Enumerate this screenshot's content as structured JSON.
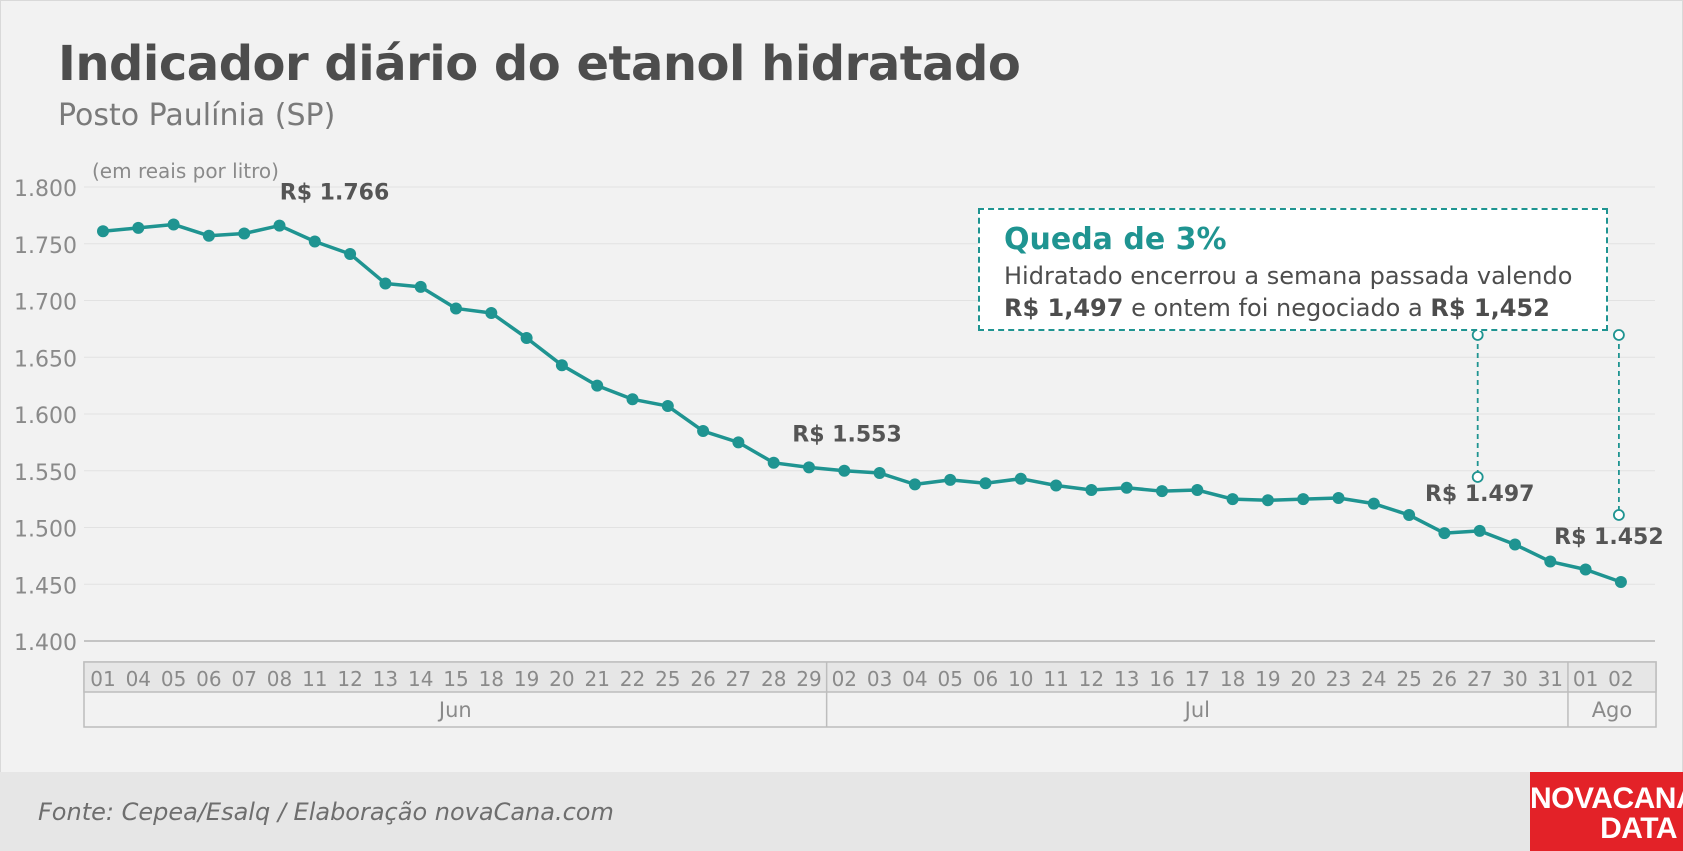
{
  "title": "Indicador diário do etanol hidratado",
  "subtitle": "Posto Paulínia (SP)",
  "source": "Fonte: Cepea/Esalq / Elaboração novaCana.com",
  "logo": {
    "line1": "NOVACANA",
    "line2": "DATA"
  },
  "callout": {
    "heading": "Queda de 3%",
    "line1": "Hidratado encerrou a semana passada valendo",
    "value1": "R$ 1,497",
    "middle": " e ontem foi negociado a ",
    "value2": "R$ 1,452"
  },
  "colors": {
    "line": "#1f9491",
    "accent": "#1f9491",
    "logo": "#e32228"
  },
  "chart_data": {
    "type": "line",
    "ylabel": "(em reais por litro)",
    "ylim": [
      1.4,
      1.8
    ],
    "yticks": [
      "1.800",
      "1.750",
      "1.700",
      "1.650",
      "1.600",
      "1.550",
      "1.500",
      "1.450",
      "1.400"
    ],
    "ytick_values": [
      1.8,
      1.75,
      1.7,
      1.65,
      1.6,
      1.55,
      1.5,
      1.45,
      1.4
    ],
    "grid": true,
    "categories": [
      "01",
      "04",
      "05",
      "06",
      "07",
      "08",
      "11",
      "12",
      "13",
      "14",
      "15",
      "18",
      "19",
      "20",
      "21",
      "22",
      "25",
      "26",
      "27",
      "28",
      "29",
      "02",
      "03",
      "04",
      "05",
      "06",
      "10",
      "11",
      "12",
      "13",
      "16",
      "17",
      "18",
      "19",
      "20",
      "23",
      "24",
      "25",
      "26",
      "27",
      "30",
      "31",
      "01",
      "02"
    ],
    "months": [
      {
        "label": "Jun",
        "start": 0,
        "end": 20
      },
      {
        "label": "Jul",
        "start": 21,
        "end": 41
      },
      {
        "label": "Ago",
        "start": 42,
        "end": 43
      }
    ],
    "values": [
      1.761,
      1.764,
      1.767,
      1.757,
      1.759,
      1.766,
      1.752,
      1.741,
      1.715,
      1.712,
      1.693,
      1.689,
      1.667,
      1.643,
      1.625,
      1.613,
      1.607,
      1.585,
      1.575,
      1.557,
      1.553,
      1.55,
      1.548,
      1.538,
      1.542,
      1.539,
      1.543,
      1.537,
      1.533,
      1.535,
      1.532,
      1.533,
      1.525,
      1.524,
      1.525,
      1.526,
      1.521,
      1.511,
      1.495,
      1.497,
      1.485,
      1.47,
      1.463,
      1.452
    ],
    "annotations": [
      {
        "index": 5,
        "text": "R$ 1.766"
      },
      {
        "index": 20,
        "text": "R$ 1.553"
      },
      {
        "index": 39,
        "text": "R$ 1.497"
      },
      {
        "index": 43,
        "text": "R$ 1.452"
      }
    ]
  }
}
